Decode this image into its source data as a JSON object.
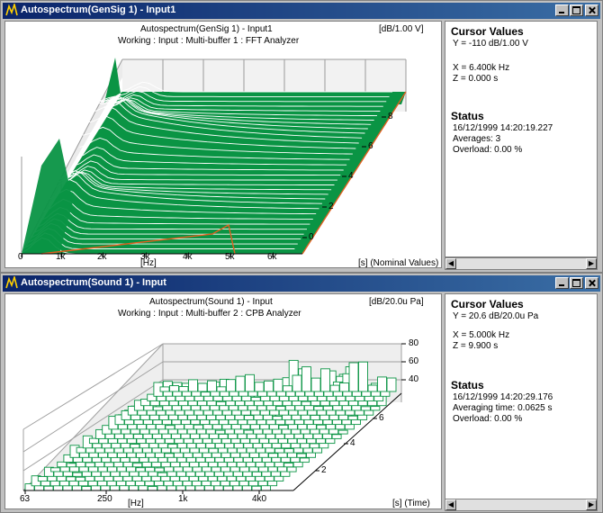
{
  "windows": [
    {
      "title": "Autospectrum(GenSig 1) - Input1",
      "plot": {
        "title": "Autospectrum(GenSig 1) - Input1",
        "subtitle": "Working : Input : Multi-buffer 1 : FFT Analyzer",
        "unit": "[dB/1.00 V]",
        "x_ticks": [
          "0",
          "1k",
          "2k",
          "3k",
          "4k",
          "5k",
          "6k"
        ],
        "x_label": "[Hz]",
        "z_label": "[s] (Nominal Values)",
        "z_ticks": [
          "0",
          "2",
          "4",
          "6",
          "8"
        ]
      },
      "cursor": {
        "heading": "Cursor Values",
        "y": "Y = -110 dB/1.00 V",
        "x": "X = 6.400k Hz",
        "z": "Z = 0.000 s"
      },
      "status": {
        "heading": "Status",
        "datetime": "16/12/1999  14:20:19.227",
        "line2": "Averages: 3",
        "line3": "Overload:  0.00 %"
      }
    },
    {
      "title": "Autospectrum(Sound 1) - Input",
      "plot": {
        "title": "Autospectrum(Sound 1) - Input",
        "subtitle": "Working : Input : Multi-buffer 2 : CPB Analyzer",
        "unit": "[dB/20.0u Pa]",
        "x_ticks": [
          "63",
          "250",
          "1k",
          "4k0"
        ],
        "x_label": "[Hz]",
        "z_label": "[s] (Time)",
        "y_ticks": [
          "80",
          "60",
          "40"
        ],
        "z_ticks": [
          "2",
          "4",
          "6"
        ]
      },
      "cursor": {
        "heading": "Cursor Values",
        "y": "Y = 20.6 dB/20.0u Pa",
        "x": "X = 5.000k Hz",
        "z": "Z = 9.900 s"
      },
      "status": {
        "heading": "Status",
        "datetime": "16/12/1999  14:20:29.176",
        "line2": "Averaging time:  0.0625 s",
        "line3": "Overload:  0.00 %"
      }
    }
  ],
  "icons": {
    "app": "analyzer-icon",
    "minimize": "minimize-icon",
    "maximize": "maximize-icon",
    "close": "close-icon",
    "scroll_left": "arrow-left-icon",
    "scroll_right": "arrow-right-icon"
  },
  "colors": {
    "surface": "#0a9444",
    "titlebar": "#0a246a",
    "cursor_line": "#e06020"
  }
}
